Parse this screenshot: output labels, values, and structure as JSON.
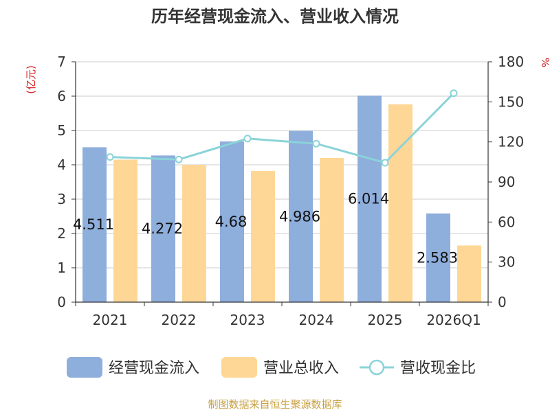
{
  "chart_data": {
    "type": "bar",
    "title": "历年经营现金流入、营业收入情况",
    "categories": [
      "2021",
      "2022",
      "2023",
      "2024",
      "2025",
      "2026Q1"
    ],
    "y_left_unit": "(亿元)",
    "y_right_unit": "%",
    "ylim_left": [
      0,
      7
    ],
    "ylim_right": [
      0,
      180
    ],
    "y_left_ticks": [
      "0",
      "1",
      "2",
      "3",
      "4",
      "5",
      "6",
      "7"
    ],
    "y_right_ticks": [
      "0",
      "30",
      "60",
      "90",
      "120",
      "150",
      "180"
    ],
    "grid": true,
    "legend_position": "bottom",
    "series": [
      {
        "name": "经营现金流入",
        "kind": "bar",
        "axis": "left",
        "color": "#8eaedc",
        "values": [
          4.511,
          4.272,
          4.68,
          4.986,
          6.014,
          2.583
        ],
        "labels": [
          "4.511",
          "4.272",
          "4.68",
          "4.986",
          "6.014",
          "2.583"
        ]
      },
      {
        "name": "营业总收入",
        "kind": "bar",
        "axis": "left",
        "color": "#fed797",
        "values": [
          4.15,
          4.0,
          3.82,
          4.2,
          5.76,
          1.65
        ]
      },
      {
        "name": "营收现金比",
        "kind": "line",
        "axis": "right",
        "color": "#8ad3d8",
        "values": [
          108.7,
          106.8,
          122.5,
          118.7,
          104.4,
          156.5
        ]
      }
    ],
    "source": "制图数据来自恒生聚源数据库"
  }
}
